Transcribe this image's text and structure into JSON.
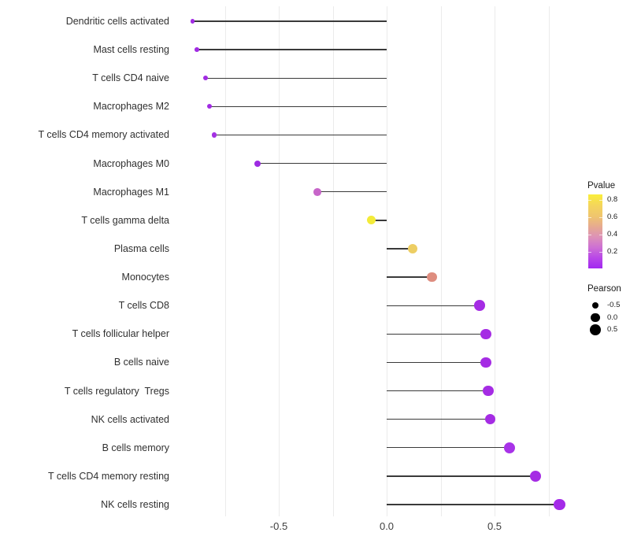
{
  "chart_data": {
    "type": "lollipop",
    "orientation": "horizontal",
    "title": "",
    "xlabel": "",
    "ylabel": "",
    "x_axis": {
      "tick_labels": [
        "-0.5",
        "0.0",
        "0.5"
      ],
      "tick_values": [
        -0.5,
        0.0,
        0.5
      ],
      "gridline_values": [
        -0.75,
        -0.5,
        -0.25,
        0.0,
        0.25,
        0.5,
        0.75
      ],
      "xlim": [
        -0.98,
        0.88
      ],
      "grid": "on"
    },
    "value_encoding": {
      "x_position_and_size": "Pearson correlation",
      "color": "Pvalue"
    },
    "points": [
      {
        "label": "Dendritic cells activated",
        "pearson": -0.9,
        "color": "#a12be3"
      },
      {
        "label": "Mast cells resting",
        "pearson": -0.88,
        "color": "#a12be3"
      },
      {
        "label": "T cells CD4 naive",
        "pearson": -0.84,
        "color": "#a12be3"
      },
      {
        "label": "Macrophages M2",
        "pearson": -0.82,
        "color": "#a12be3"
      },
      {
        "label": "T cells CD4 memory activated",
        "pearson": -0.8,
        "color": "#a331e2"
      },
      {
        "label": "Macrophages M0",
        "pearson": -0.6,
        "color": "#9d2be2"
      },
      {
        "label": "Macrophages M1",
        "pearson": -0.32,
        "color": "#c765c9"
      },
      {
        "label": "T cells gamma delta",
        "pearson": -0.07,
        "color": "#f3eb39"
      },
      {
        "label": "Plasma cells",
        "pearson": 0.12,
        "color": "#edce63"
      },
      {
        "label": "Monocytes",
        "pearson": 0.21,
        "color": "#de8d7f"
      },
      {
        "label": "T cells CD8",
        "pearson": 0.43,
        "color": "#a52ce4"
      },
      {
        "label": "T cells follicular helper",
        "pearson": 0.46,
        "color": "#a52ce4"
      },
      {
        "label": "B cells naive",
        "pearson": 0.46,
        "color": "#a52ce4"
      },
      {
        "label": "T cells regulatory  Tregs",
        "pearson": 0.47,
        "color": "#a52ce4"
      },
      {
        "label": "NK cells activated",
        "pearson": 0.48,
        "color": "#a52ce4"
      },
      {
        "label": "B cells memory",
        "pearson": 0.57,
        "color": "#a833e8"
      },
      {
        "label": "T cells CD4 memory resting",
        "pearson": 0.69,
        "color": "#a52ce4"
      },
      {
        "label": "NK cells resting",
        "pearson": 0.8,
        "color": "#a42be8"
      }
    ],
    "legend_pvalue": {
      "title": "Pvalue",
      "tick_labels": [
        "0.8",
        "0.6",
        "0.4",
        "0.2"
      ],
      "gradient_top_color": "#faee3a",
      "gradient_bottom_color": "#a228f0"
    },
    "legend_pearson": {
      "title": "Pearson",
      "items": [
        {
          "label": "-0.5",
          "value": -0.5
        },
        {
          "label": "0.0",
          "value": 0.0
        },
        {
          "label": "0.5",
          "value": 0.5
        }
      ],
      "dot_color": "#000000"
    }
  },
  "style_colors": {
    "background": "#ffffff",
    "gridline": "#ebebeb",
    "stem": "#3a3a3a",
    "axis_text": "#404040"
  }
}
